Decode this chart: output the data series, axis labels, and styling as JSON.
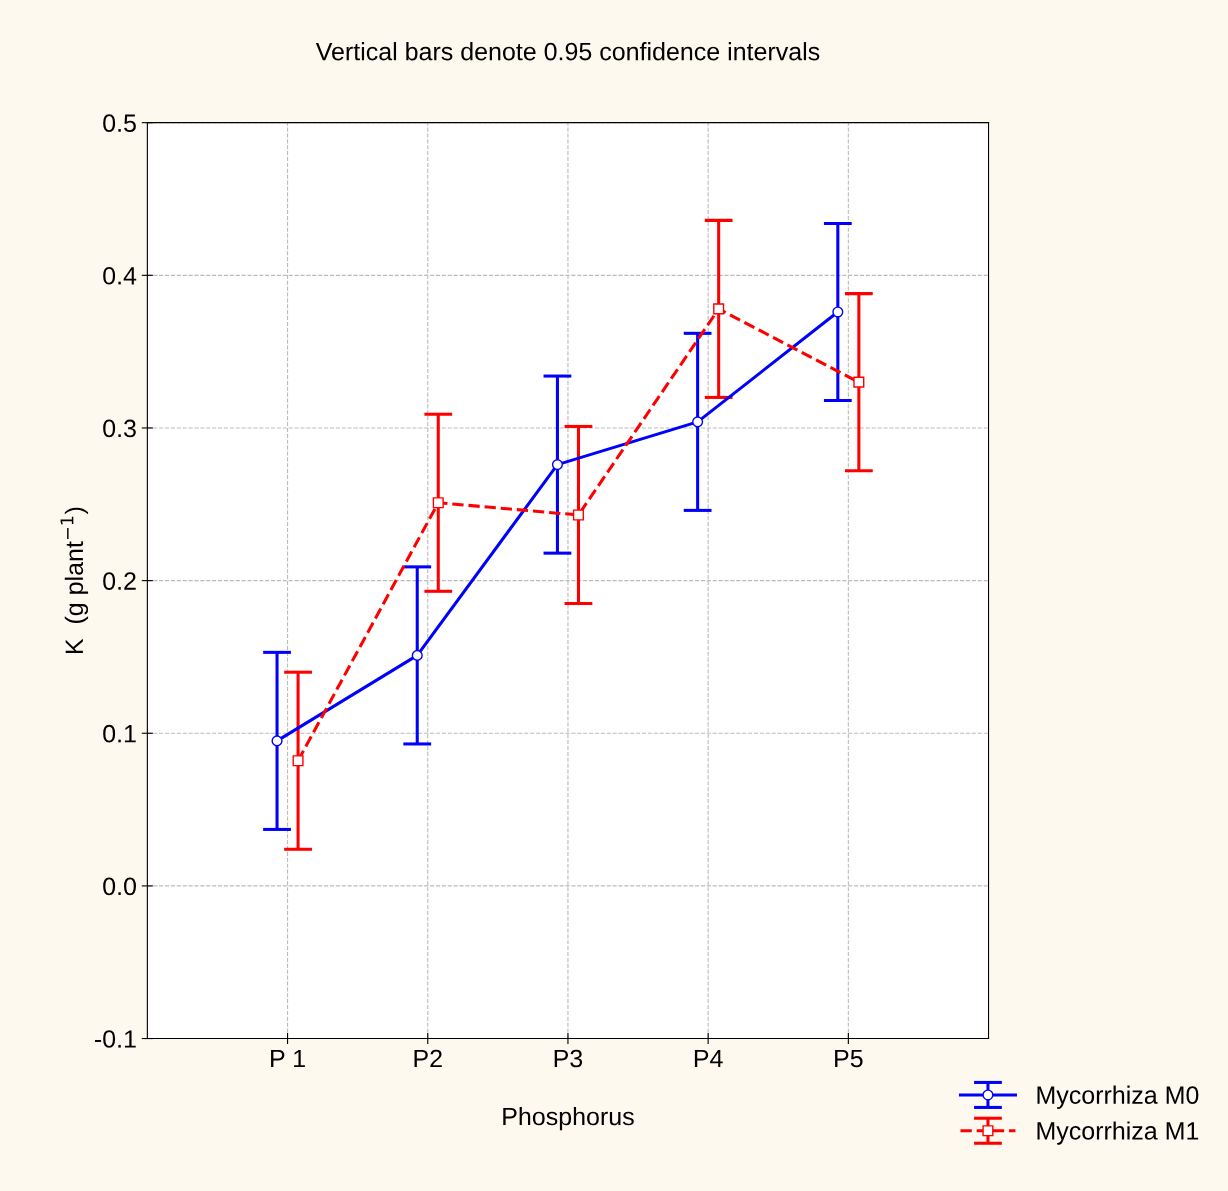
{
  "chart_data": {
    "type": "line",
    "title": "Vertical bars denote 0.95 confidence intervals",
    "xlabel": "Phosphorus",
    "ylabel": "K  (g plant$^{−1}$)",
    "categories": [
      "P 1",
      "P2",
      "P3",
      "P4",
      "P5"
    ],
    "series": [
      {
        "name": "Mycorrhiza M0",
        "color": "#0000ff",
        "marker": "circle",
        "line_style": "solid",
        "values": [
          0.095,
          0.151,
          0.276,
          0.304,
          0.376
        ],
        "errors": [
          0.058,
          0.058,
          0.058,
          0.058,
          0.058
        ]
      },
      {
        "name": "Mycorrhiza M1",
        "color": "#ff0000",
        "marker": "square",
        "line_style": "dashed",
        "values": [
          0.082,
          0.251,
          0.243,
          0.378,
          0.33
        ],
        "errors": [
          0.058,
          0.058,
          0.058,
          0.058,
          0.058
        ]
      }
    ],
    "ylim": [
      -0.1,
      0.5
    ],
    "yticks": [
      {
        "value": -0.1,
        "label": "-0.1"
      },
      {
        "value": 0,
        "label": "0.0"
      },
      0.1,
      0.2,
      0.3,
      0.4,
      0.5
    ],
    "grid": true,
    "legend": "bottom right"
  }
}
